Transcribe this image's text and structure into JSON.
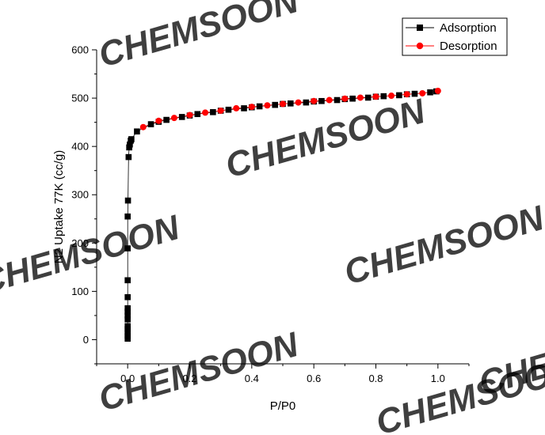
{
  "watermark": "CHEMSOON",
  "chart_data": {
    "type": "scatter",
    "title": "",
    "xlabel": "P/P0",
    "ylabel": "N2 Uptake 77K (cc/g)",
    "xlim": [
      -0.1,
      1.1
    ],
    "ylim": [
      -50,
      600
    ],
    "xticks": [
      0.0,
      0.2,
      0.4,
      0.6,
      0.8,
      1.0
    ],
    "xtick_labels": [
      "0.0",
      "0.2",
      "0.4",
      "0.6",
      "0.8",
      "1.0"
    ],
    "yticks": [
      0,
      100,
      200,
      300,
      400,
      500,
      600
    ],
    "ytick_labels": [
      "0",
      "100",
      "200",
      "300",
      "400",
      "500",
      "600"
    ],
    "grid": false,
    "legend_position": "top-right",
    "series": [
      {
        "name": "Adsorption",
        "marker": "square",
        "color": "#000000",
        "points": [
          [
            0.0,
            2
          ],
          [
            0.0,
            8
          ],
          [
            0.0,
            15
          ],
          [
            0.0,
            22
          ],
          [
            0.0,
            28
          ],
          [
            0.0,
            42
          ],
          [
            0.0,
            50
          ],
          [
            0.0,
            58
          ],
          [
            0.0,
            65
          ],
          [
            0.0,
            88
          ],
          [
            0.0,
            123
          ],
          [
            0.0,
            189
          ],
          [
            0.0,
            255
          ],
          [
            0.001,
            288
          ],
          [
            0.003,
            378
          ],
          [
            0.005,
            398
          ],
          [
            0.007,
            404
          ],
          [
            0.01,
            412
          ],
          [
            0.012,
            415
          ],
          [
            0.03,
            431
          ],
          [
            0.075,
            446
          ],
          [
            0.1,
            451
          ],
          [
            0.125,
            455
          ],
          [
            0.175,
            461
          ],
          [
            0.2,
            464
          ],
          [
            0.225,
            467
          ],
          [
            0.275,
            471
          ],
          [
            0.3,
            474
          ],
          [
            0.325,
            476
          ],
          [
            0.375,
            479
          ],
          [
            0.4,
            481
          ],
          [
            0.425,
            483
          ],
          [
            0.475,
            486
          ],
          [
            0.5,
            488
          ],
          [
            0.525,
            489
          ],
          [
            0.575,
            491
          ],
          [
            0.6,
            493
          ],
          [
            0.625,
            494
          ],
          [
            0.675,
            496
          ],
          [
            0.7,
            498
          ],
          [
            0.725,
            499
          ],
          [
            0.775,
            501
          ],
          [
            0.8,
            503
          ],
          [
            0.825,
            504
          ],
          [
            0.875,
            506
          ],
          [
            0.9,
            508
          ],
          [
            0.925,
            509
          ],
          [
            0.975,
            512
          ],
          [
            0.995,
            514
          ]
        ]
      },
      {
        "name": "Desorption",
        "marker": "circle",
        "color": "#ff0000",
        "points": [
          [
            0.05,
            440
          ],
          [
            0.1,
            453
          ],
          [
            0.15,
            459
          ],
          [
            0.2,
            465
          ],
          [
            0.25,
            470
          ],
          [
            0.3,
            474
          ],
          [
            0.35,
            479
          ],
          [
            0.4,
            482
          ],
          [
            0.45,
            485
          ],
          [
            0.5,
            488
          ],
          [
            0.55,
            491
          ],
          [
            0.6,
            494
          ],
          [
            0.65,
            496
          ],
          [
            0.7,
            499
          ],
          [
            0.75,
            501
          ],
          [
            0.8,
            503
          ],
          [
            0.85,
            505
          ],
          [
            0.9,
            508
          ],
          [
            0.95,
            510
          ],
          [
            1.0,
            515
          ]
        ]
      }
    ]
  }
}
